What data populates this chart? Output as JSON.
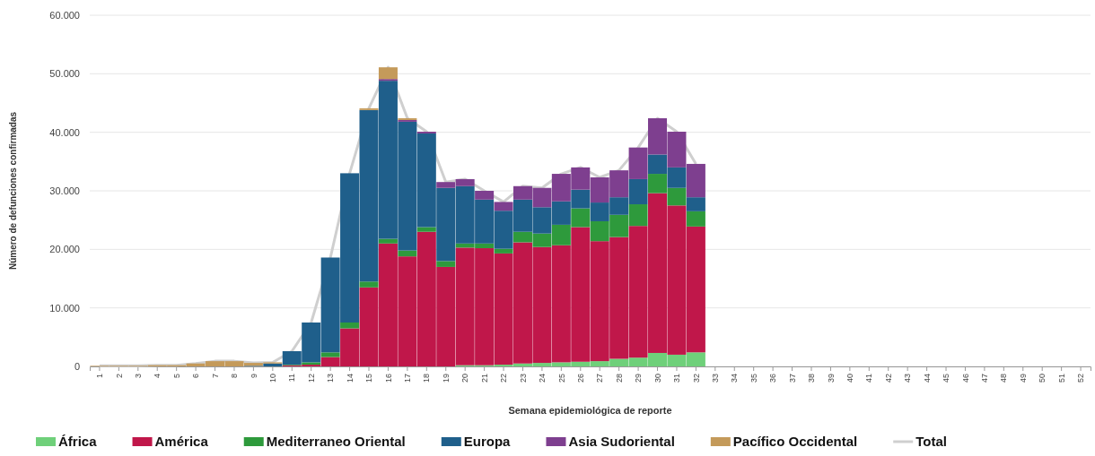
{
  "chart_data": {
    "type": "bar",
    "stacked": true,
    "xlabel": "Semana epidemiológica de reporte",
    "ylabel": "Número de defunciones confirmadas",
    "categories": [
      "1",
      "2",
      "3",
      "4",
      "5",
      "6",
      "7",
      "8",
      "9",
      "10",
      "11",
      "12",
      "13",
      "14",
      "15",
      "16",
      "17",
      "18",
      "19",
      "20",
      "21",
      "22",
      "23",
      "24",
      "25",
      "26",
      "27",
      "28",
      "29",
      "30",
      "31",
      "32",
      "33",
      "34",
      "35",
      "36",
      "37",
      "38",
      "39",
      "40",
      "41",
      "42",
      "43",
      "44",
      "45",
      "46",
      "47",
      "48",
      "49",
      "50",
      "51",
      "52"
    ],
    "ylim": [
      0,
      60000
    ],
    "yticks": [
      {
        "value": 0,
        "label": "0"
      },
      {
        "value": 10000,
        "label": "10.000"
      },
      {
        "value": 20000,
        "label": "20.000"
      },
      {
        "value": 30000,
        "label": "30.000"
      },
      {
        "value": 40000,
        "label": "40.000"
      },
      {
        "value": 50000,
        "label": "50.000"
      },
      {
        "value": 60000,
        "label": "60.000"
      }
    ],
    "grid": "y",
    "legend": "bottom",
    "series": [
      {
        "name": "África",
        "color": "#6fd07a",
        "values": [
          0,
          0,
          0,
          0,
          0,
          0,
          0,
          0,
          0,
          0,
          0,
          0,
          0,
          0,
          0,
          0,
          0,
          0,
          0,
          200,
          200,
          300,
          500,
          600,
          700,
          800,
          900,
          1300,
          1500,
          2300,
          2000,
          2400,
          null,
          null,
          null,
          null,
          null,
          null,
          null,
          null,
          null,
          null,
          null,
          null,
          null,
          null,
          null,
          null,
          null,
          null,
          null,
          null
        ]
      },
      {
        "name": "América",
        "color": "#c0174a",
        "values": [
          0,
          0,
          0,
          0,
          0,
          0,
          0,
          0,
          0,
          0,
          200,
          300,
          1600,
          6500,
          13500,
          21000,
          18800,
          23000,
          17000,
          20100,
          20000,
          19000,
          20700,
          19800,
          20000,
          23000,
          20500,
          20800,
          22500,
          27300,
          25500,
          21500,
          null,
          null,
          null,
          null,
          null,
          null,
          null,
          null,
          null,
          null,
          null,
          null,
          null,
          null,
          null,
          null,
          null,
          null,
          null,
          null
        ]
      },
      {
        "name": "Mediterraneo Oriental",
        "color": "#2e9a3c",
        "values": [
          0,
          0,
          0,
          0,
          0,
          0,
          0,
          0,
          0,
          0,
          100,
          400,
          800,
          1000,
          1000,
          800,
          1000,
          800,
          1000,
          700,
          800,
          800,
          1800,
          2300,
          3500,
          3200,
          3400,
          3800,
          3700,
          3300,
          3000,
          2600,
          null,
          null,
          null,
          null,
          null,
          null,
          null,
          null,
          null,
          null,
          null,
          null,
          null,
          null,
          null,
          null,
          null,
          null,
          null,
          null
        ]
      },
      {
        "name": "Europa",
        "color": "#1f5f8b",
        "values": [
          0,
          0,
          0,
          0,
          0,
          0,
          0,
          0,
          100,
          500,
          2300,
          6800,
          16200,
          25500,
          29300,
          27000,
          22000,
          16000,
          12500,
          9800,
          7500,
          6500,
          5500,
          4500,
          4000,
          3200,
          3200,
          3000,
          4300,
          3300,
          3500,
          2400,
          null,
          null,
          null,
          null,
          null,
          null,
          null,
          null,
          null,
          null,
          null,
          null,
          null,
          null,
          null,
          null,
          null,
          null,
          null,
          null
        ]
      },
      {
        "name": "Asia Sudoriental",
        "color": "#7e3f8f",
        "values": [
          0,
          0,
          0,
          0,
          0,
          0,
          0,
          0,
          0,
          0,
          0,
          0,
          0,
          0,
          0,
          300,
          300,
          300,
          1000,
          1200,
          1500,
          1500,
          2300,
          3300,
          4700,
          3800,
          4300,
          4600,
          5400,
          6200,
          6100,
          5700,
          null,
          null,
          null,
          null,
          null,
          null,
          null,
          null,
          null,
          null,
          null,
          null,
          null,
          null,
          null,
          null,
          null,
          null,
          null,
          null
        ]
      },
      {
        "name": "Pacífico Occidental",
        "color": "#c49a5a",
        "values": [
          100,
          100,
          100,
          200,
          200,
          500,
          900,
          900,
          500,
          200,
          null,
          null,
          null,
          null,
          300,
          2000,
          300,
          null,
          null,
          null,
          null,
          null,
          null,
          null,
          null,
          null,
          null,
          null,
          null,
          null,
          null,
          null,
          null,
          null,
          null,
          null,
          null,
          null,
          null,
          null,
          null,
          null,
          null,
          null,
          null,
          null,
          null,
          null,
          null,
          null,
          null,
          null
        ]
      },
      {
        "name": "Total",
        "type": "line",
        "color": "#cfcfcf",
        "marker": "none",
        "values": [
          100,
          100,
          100,
          200,
          200,
          500,
          900,
          900,
          600,
          700,
          2600,
          7500,
          18600,
          33000,
          44100,
          51100,
          42400,
          40100,
          31500,
          32000,
          30000,
          28100,
          30800,
          30500,
          32900,
          34000,
          32300,
          33500,
          37400,
          42400,
          40100,
          34600,
          null,
          null,
          null,
          null,
          null,
          null,
          null,
          null,
          null,
          null,
          null,
          null,
          null,
          null,
          null,
          null,
          null,
          null,
          null,
          null
        ]
      }
    ]
  }
}
